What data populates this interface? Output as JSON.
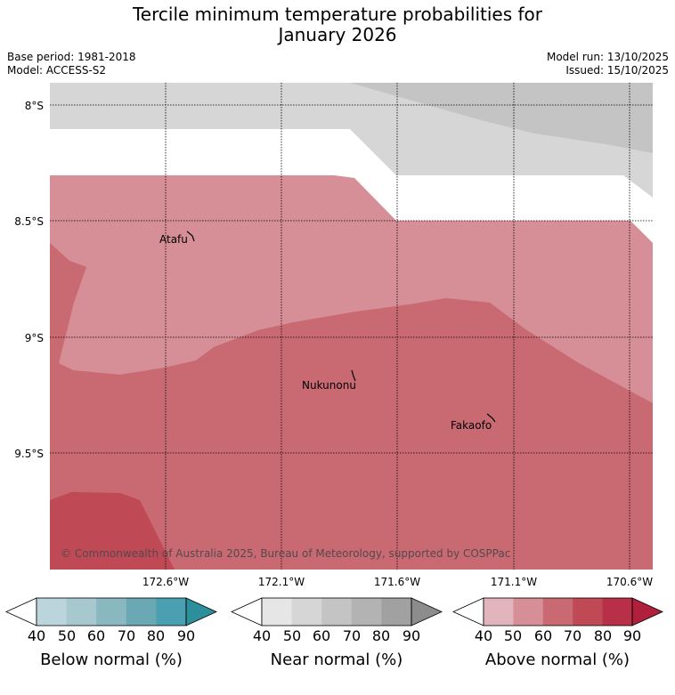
{
  "title_line1": "Tercile minimum temperature probabilities for",
  "title_line2": "January 2026",
  "meta": {
    "base_period": "Base period: 1981-2018",
    "model": "Model: ACCESS-S2",
    "model_run": "Model run: 13/10/2025",
    "issued": "Issued: 15/10/2025"
  },
  "map": {
    "lat_labels": [
      "8°S",
      "8.5°S",
      "9°S",
      "9.5°S"
    ],
    "lon_labels": [
      "172.6°W",
      "172.1°W",
      "171.6°W",
      "171.1°W",
      "170.6°W"
    ],
    "places": [
      "Atafu",
      "Nukunonu",
      "Fakaofo"
    ],
    "copyright": "© Commonwealth of Australia 2025, Bureau of Meteorology, supported by COSPPac"
  },
  "colorbars": [
    {
      "label": "Below normal (%)",
      "ticks": [
        "40",
        "50",
        "60",
        "70",
        "80",
        "90"
      ],
      "colors": [
        "#ffffff",
        "#bcd5dc",
        "#a6c8ce",
        "#8ab8c1",
        "#6aa8b4",
        "#4aa0b0",
        "#2e8f9c"
      ]
    },
    {
      "label": "Near normal (%)",
      "ticks": [
        "40",
        "50",
        "60",
        "70",
        "80",
        "90"
      ],
      "colors": [
        "#ffffff",
        "#e6e6e6",
        "#d6d6d6",
        "#c4c4c4",
        "#b3b3b3",
        "#a1a1a1",
        "#8c8c8c"
      ]
    },
    {
      "label": "Above normal (%)",
      "ticks": [
        "40",
        "50",
        "60",
        "70",
        "80",
        "90"
      ],
      "colors": [
        "#ffffff",
        "#e2b5bd",
        "#d68e97",
        "#c96a73",
        "#bf4a56",
        "#b83047",
        "#b0203c"
      ]
    }
  ],
  "colors": {
    "near_50": "#d6d6d6",
    "near_60": "#c4c4c4",
    "above_50": "#d68e97",
    "above_60": "#c96a73",
    "above_70": "#bf4a56"
  }
}
